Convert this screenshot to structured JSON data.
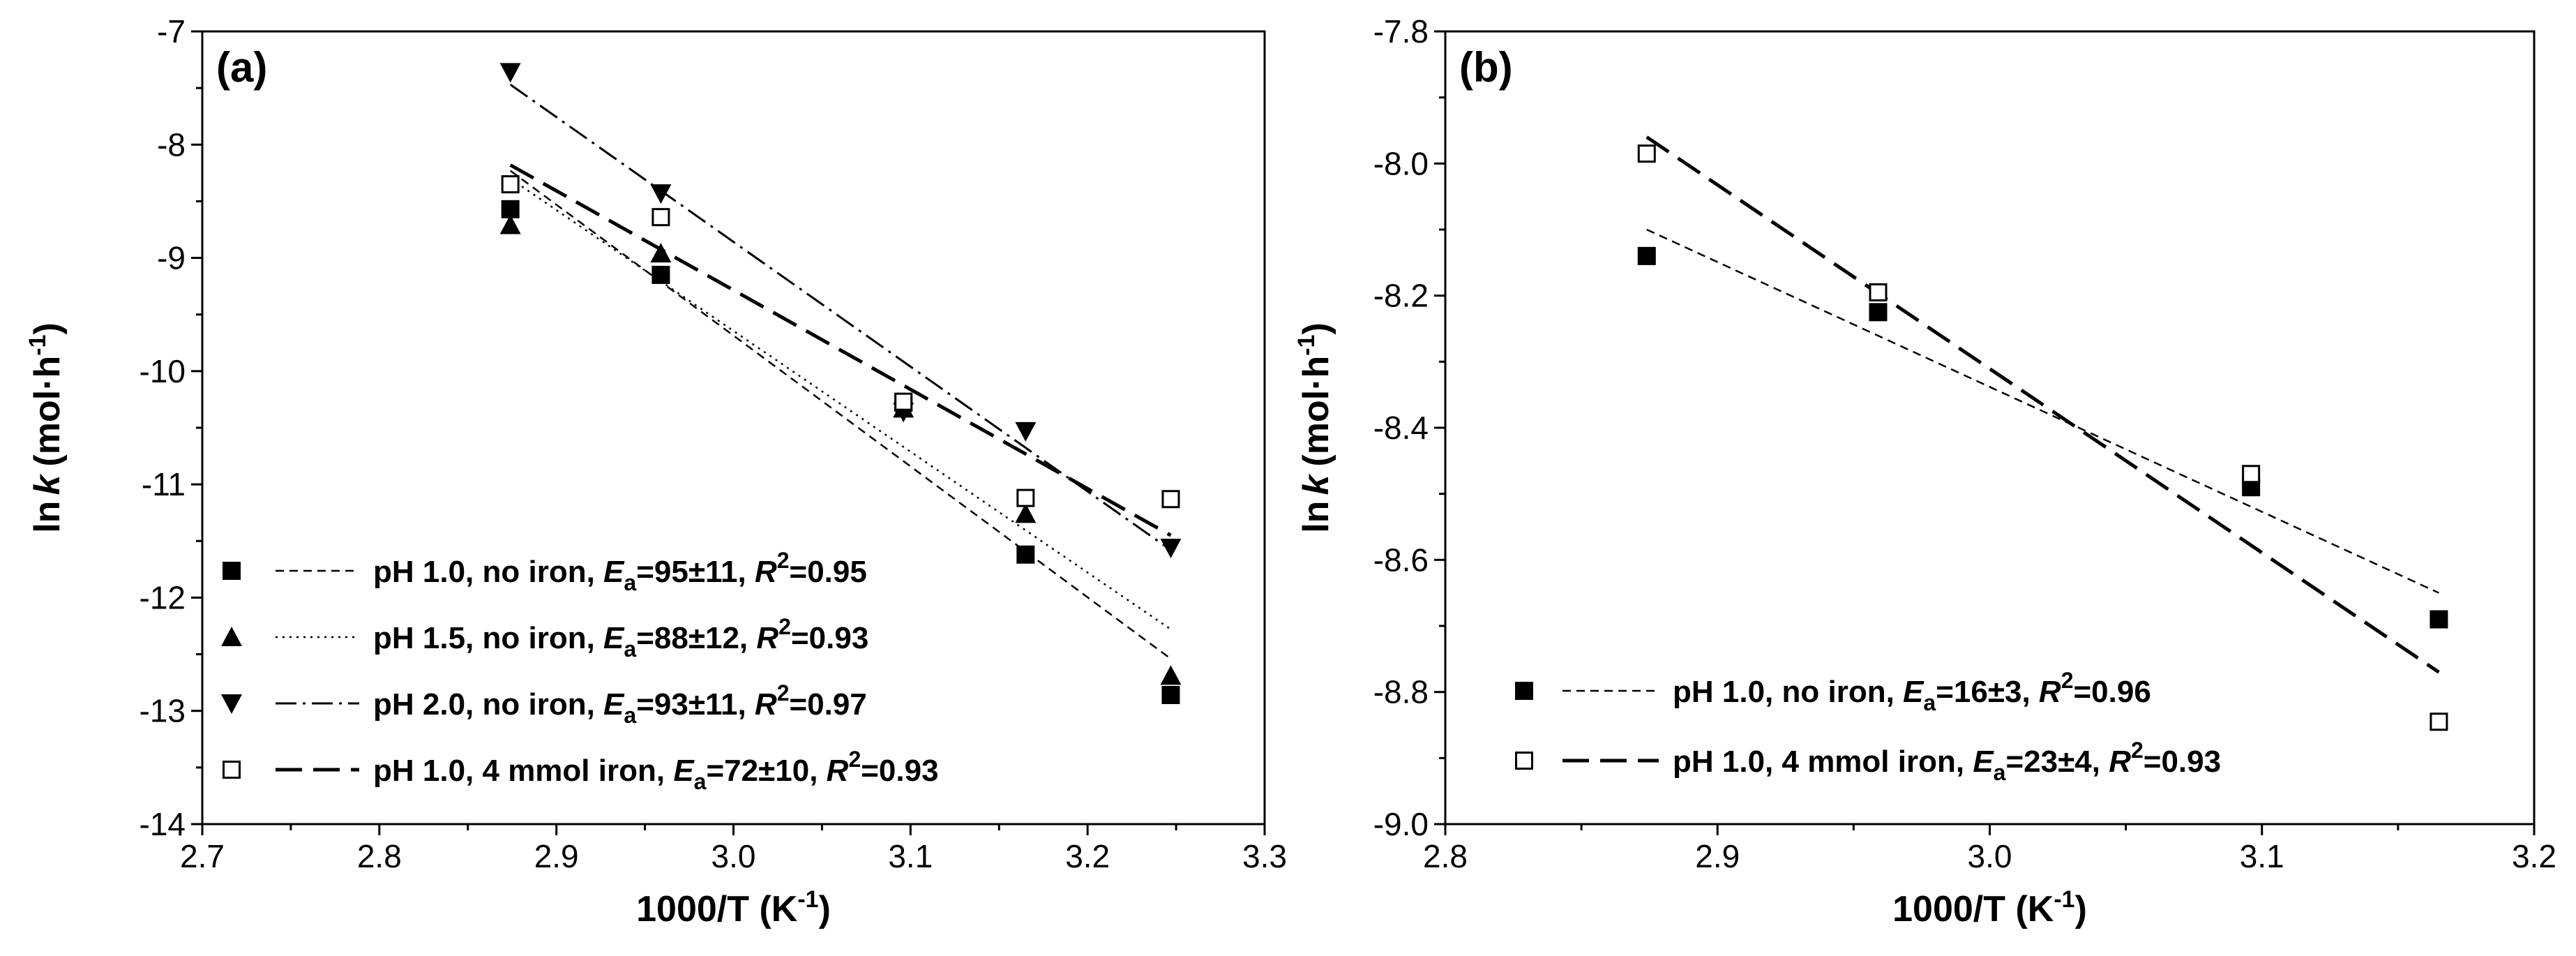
{
  "chart_data": [
    {
      "panel": "(a)",
      "type": "scatter",
      "xlabel": "1000/T (K",
      "xlabel_sup": "-1",
      "xlabel_tail": ")",
      "ylabel_ln": "ln",
      "ylabel_k": "k",
      "ylabel_unit": "(mol·h",
      "ylabel_sup": "-1",
      "ylabel_tail": ")",
      "xlim": [
        2.7,
        3.3
      ],
      "ylim": [
        -14,
        -7
      ],
      "xticks": [
        "2.7",
        "2.8",
        "2.9",
        "3.0",
        "3.1",
        "3.2",
        "3.3"
      ],
      "yticks": [
        "-7",
        "-8",
        "-9",
        "-10",
        "-11",
        "-12",
        "-13",
        "-14"
      ],
      "legend_position": "bottom-left",
      "series": [
        {
          "marker": "filled-square",
          "line_style": "short-dash",
          "legend_prefix": "pH 1.0, no iron, ",
          "ea_value": "95±11",
          "r2_value": "0.95",
          "x": [
            2.874,
            2.959,
            3.096,
            3.165,
            3.247
          ],
          "y": [
            -8.57,
            -9.15,
            -10.28,
            -11.62,
            -12.86
          ],
          "fit": [
            [
              2.874,
              -8.23
            ],
            [
              3.247,
              -12.54
            ]
          ]
        },
        {
          "marker": "filled-triangle-up",
          "line_style": "dotted",
          "legend_prefix": "pH 1.5, no iron, ",
          "ea_value": "88±12",
          "r2_value": "0.93",
          "x": [
            2.874,
            2.959,
            3.096,
            3.165,
            3.247
          ],
          "y": [
            -8.71,
            -8.96,
            -10.33,
            -11.26,
            -12.69
          ],
          "fit": [
            [
              2.874,
              -8.3
            ],
            [
              3.247,
              -12.28
            ]
          ]
        },
        {
          "marker": "filled-triangle-down",
          "line_style": "dash-dot",
          "legend_prefix": "pH 2.0, no iron, ",
          "ea_value": "93±11",
          "r2_value": "0.97",
          "x": [
            2.874,
            2.959,
            3.096,
            3.165,
            3.247
          ],
          "y": [
            -7.36,
            -8.43,
            -10.36,
            -10.53,
            -11.56
          ],
          "fit": [
            [
              2.874,
              -7.47
            ],
            [
              3.247,
              -11.58
            ]
          ]
        },
        {
          "marker": "open-square",
          "line_style": "long-dash",
          "legend_prefix": "pH 1.0, 4 mmol iron, ",
          "ea_value": "72±10",
          "r2_value": "0.93",
          "x": [
            2.874,
            2.959,
            3.096,
            3.165,
            3.247
          ],
          "y": [
            -8.35,
            -8.64,
            -10.27,
            -11.12,
            -11.13
          ],
          "fit": [
            [
              2.874,
              -8.18
            ],
            [
              3.247,
              -11.45
            ]
          ]
        }
      ]
    },
    {
      "panel": "(b)",
      "type": "scatter",
      "xlabel": "1000/T (K",
      "xlabel_sup": "-1",
      "xlabel_tail": ")",
      "ylabel_ln": "ln",
      "ylabel_k": "k",
      "ylabel_unit": "(mol·h",
      "ylabel_sup": "-1",
      "ylabel_tail": ")",
      "xlim": [
        2.8,
        3.2
      ],
      "ylim": [
        -9.0,
        -7.8
      ],
      "xticks": [
        "2.8",
        "2.9",
        "3.0",
        "3.1",
        "3.2"
      ],
      "yticks": [
        "-7.8",
        "-8.0",
        "-8.2",
        "-8.4",
        "-8.6",
        "-8.8",
        "-9.0"
      ],
      "legend_position": "bottom-left",
      "series": [
        {
          "marker": "filled-square",
          "line_style": "short-dash",
          "legend_prefix": "pH 1.0, no iron, ",
          "ea_value": "16±3",
          "r2_value": "0.96",
          "x": [
            2.874,
            2.959,
            3.096,
            3.165
          ],
          "y": [
            -8.14,
            -8.225,
            -8.49,
            -8.69
          ],
          "fit": [
            [
              2.874,
              -8.1
            ],
            [
              3.165,
              -8.65
            ]
          ]
        },
        {
          "marker": "open-square",
          "line_style": "long-dash",
          "legend_prefix": "pH 1.0, 4 mmol iron, ",
          "ea_value": "23±4",
          "r2_value": "0.93",
          "x": [
            2.874,
            2.959,
            3.096,
            3.165
          ],
          "y": [
            -7.985,
            -8.195,
            -8.47,
            -8.845
          ],
          "fit": [
            [
              2.874,
              -7.96
            ],
            [
              3.165,
              -8.77
            ]
          ]
        }
      ]
    }
  ]
}
